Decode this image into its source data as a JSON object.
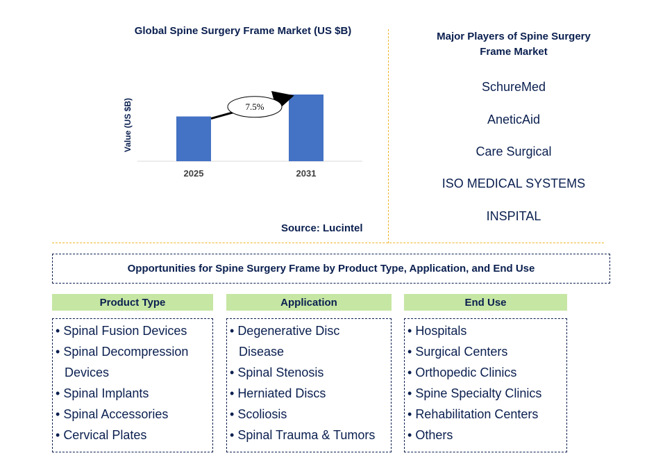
{
  "chart_data": {
    "type": "bar",
    "title": "Global Spine Surgery Frame Market (US $B)",
    "ylabel": "Value (US $B)",
    "xlabel": "",
    "categories": [
      "2025",
      "2031"
    ],
    "values": [
      1.0,
      1.49
    ],
    "annotation": "7.5%",
    "bar_color": "#4472c4",
    "grid": false
  },
  "source": "Source: Lucintel",
  "players": {
    "title": "Major Players of Spine Surgery Frame Market",
    "items": [
      "SchureMed",
      "AneticAid",
      "Care Surgical",
      "ISO MEDICAL SYSTEMS",
      "INSPITAL"
    ]
  },
  "opportunities": {
    "title": "Opportunities for Spine Surgery Frame by Product Type, Application, and End Use",
    "columns": [
      {
        "heading": "Product Type",
        "items": [
          "Spinal Fusion Devices",
          "Spinal Decompression Devices",
          "Spinal Implants",
          "Spinal Accessories",
          "Cervical Plates"
        ]
      },
      {
        "heading": "Application",
        "items": [
          "Degenerative Disc Disease",
          "Spinal Stenosis",
          "Herniated Discs",
          "Scoliosis",
          "Spinal Trauma & Tumors"
        ]
      },
      {
        "heading": "End Use",
        "items": [
          "Hospitals",
          "Surgical Centers",
          "Orthopedic Clinics",
          "Spine Specialty Clinics",
          "Rehabilitation Centers",
          "Others"
        ]
      }
    ]
  },
  "colors": {
    "text": "#0a1f4f",
    "header_bg": "#c6e6a3",
    "divider": "#f0b429"
  }
}
